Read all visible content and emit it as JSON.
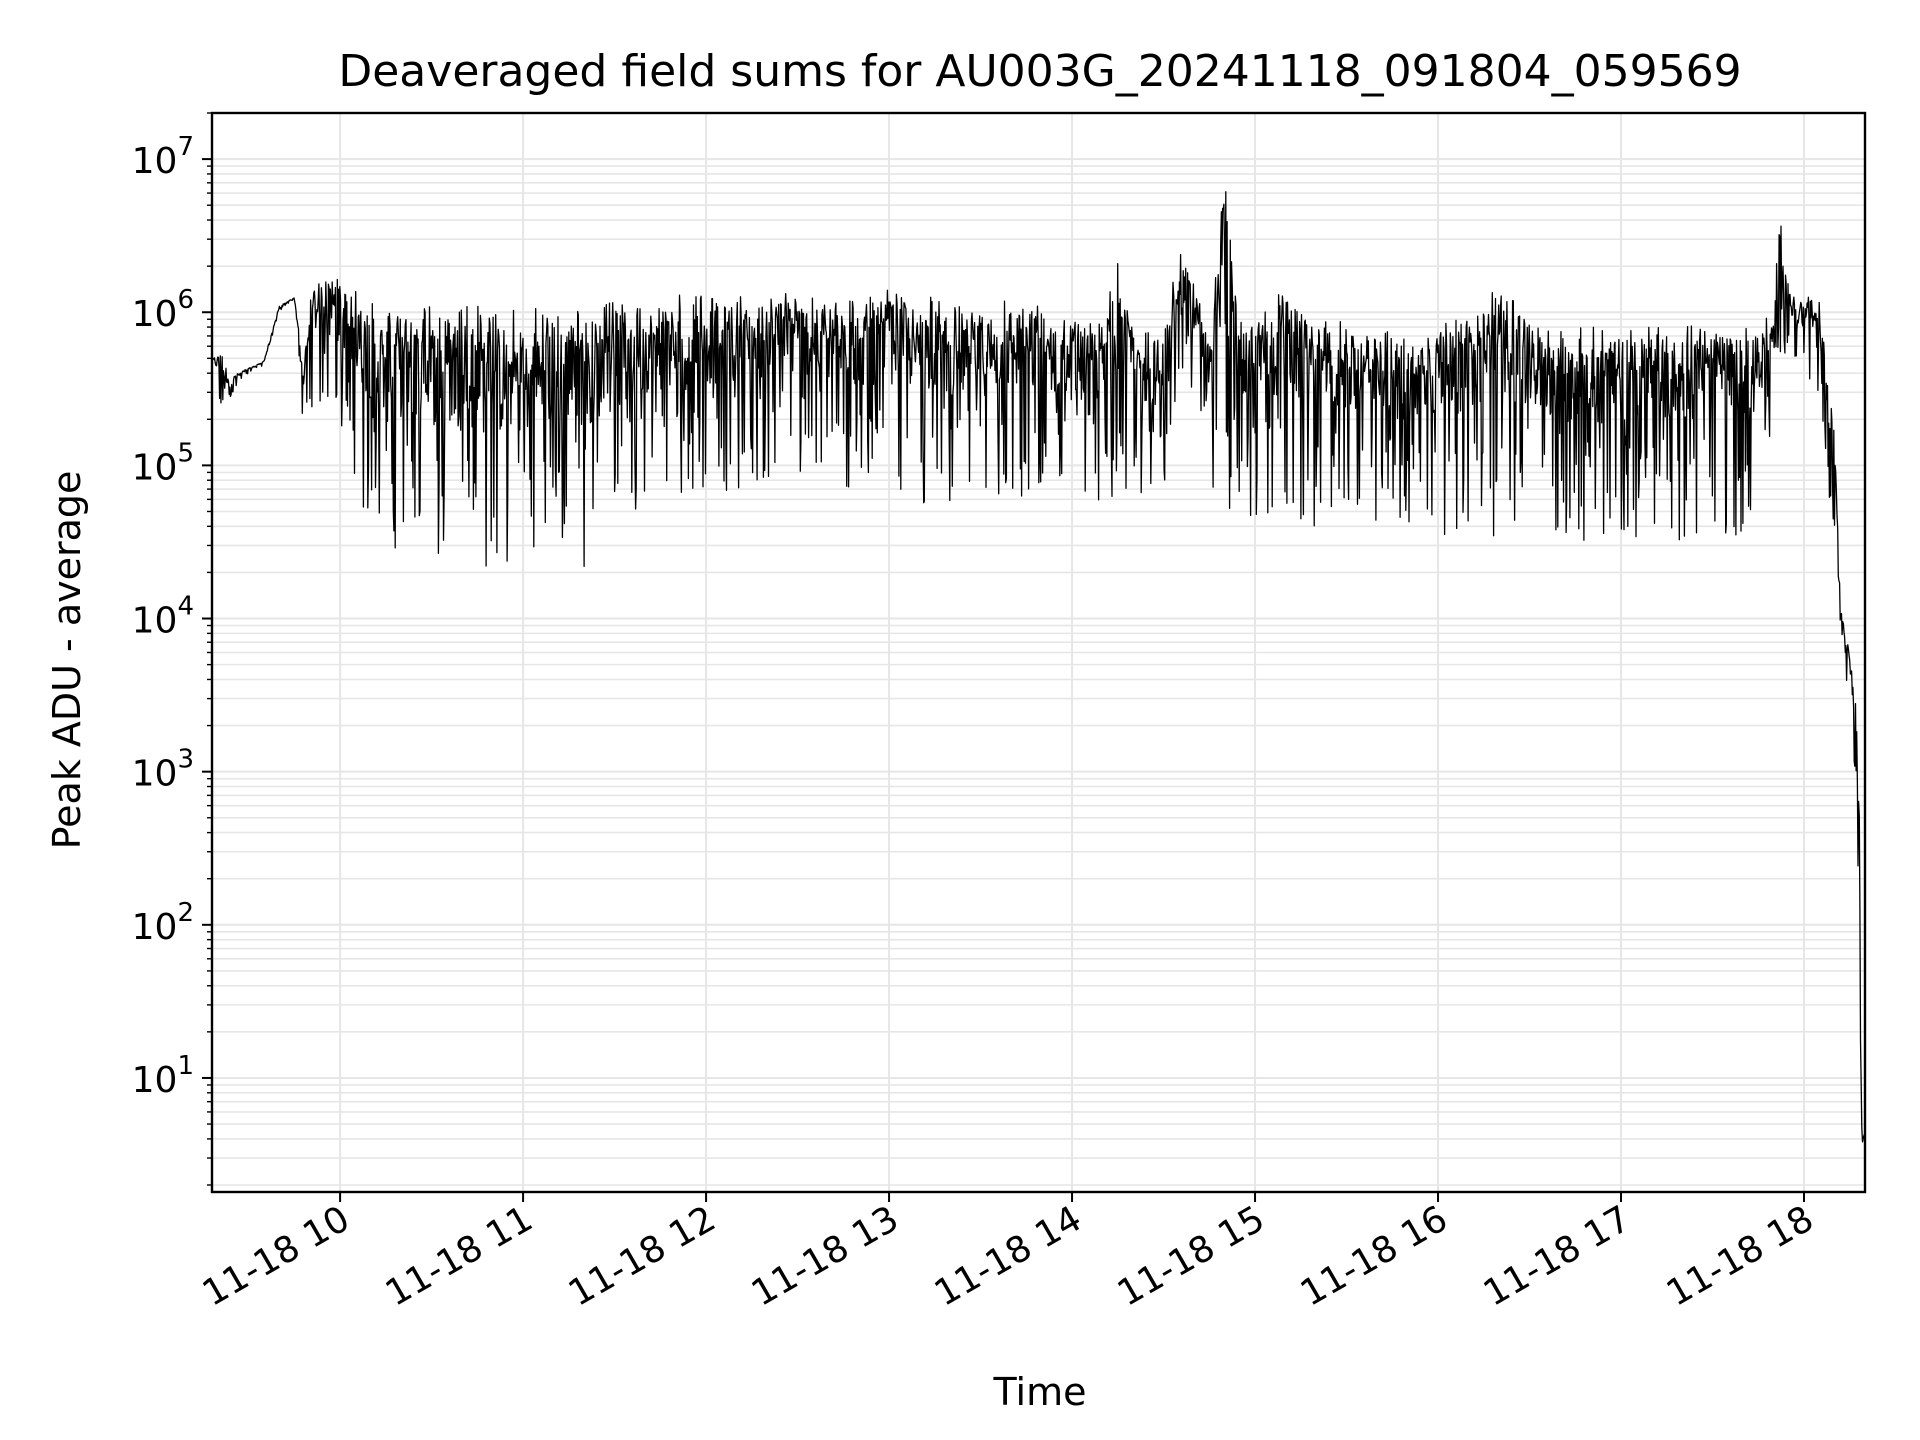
{
  "chart_data": {
    "type": "line",
    "title": "Deaveraged field sums for AU003G_20241118_091804_059569",
    "xlabel": "Time",
    "ylabel": "Peak ADU - average",
    "xscale": "time",
    "yscale": "log",
    "xlim": [
      "2024-11-18T09:18:04",
      "2024-11-18T18:20:00"
    ],
    "ylim": [
      1.8,
      20000000
    ],
    "grid": "major and minor, light gray",
    "line_color": "#000000",
    "x_ticks": [
      "11-18 10",
      "11-18 11",
      "11-18 12",
      "11-18 13",
      "11-18 14",
      "11-18 15",
      "11-18 16",
      "11-18 17",
      "11-18 18"
    ],
    "y_ticks": [
      {
        "value": 10,
        "base": "10",
        "exp": "1"
      },
      {
        "value": 100,
        "base": "10",
        "exp": "2"
      },
      {
        "value": 1000,
        "base": "10",
        "exp": "3"
      },
      {
        "value": 10000,
        "base": "10",
        "exp": "4"
      },
      {
        "value": 100000,
        "base": "10",
        "exp": "5"
      },
      {
        "value": 1000000,
        "base": "10",
        "exp": "6"
      },
      {
        "value": 10000000,
        "base": "10",
        "exp": "7"
      }
    ],
    "series": [
      {
        "x": [
          "09:18",
          "09:21",
          "09:24",
          "09:28",
          "09:31",
          "09:35",
          "09:40",
          "09:45",
          "09:48",
          "09:51",
          "09:54",
          "09:57",
          "10:02",
          "10:06",
          "10:10",
          "10:15",
          "10:20",
          "10:25",
          "10:30",
          "10:35",
          "10:40",
          "10:45",
          "10:50",
          "10:55",
          "11:00",
          "11:05",
          "11:10",
          "11:15",
          "11:20",
          "11:25",
          "11:30",
          "11:35",
          "11:40",
          "11:45",
          "11:50",
          "11:55",
          "12:00",
          "12:10",
          "12:20",
          "12:30",
          "12:40",
          "12:50",
          "13:00",
          "13:10",
          "13:20",
          "13:30",
          "13:40",
          "13:50",
          "14:00",
          "14:10",
          "14:15",
          "14:20",
          "14:30",
          "14:35",
          "14:38",
          "14:40",
          "14:45",
          "14:50",
          "14:55",
          "15:00",
          "15:10",
          "15:20",
          "15:30",
          "15:40",
          "15:50",
          "16:00",
          "16:10",
          "16:20",
          "16:30",
          "16:40",
          "16:50",
          "17:00",
          "17:10",
          "17:20",
          "17:30",
          "17:40",
          "17:45",
          "17:50",
          "17:52",
          "17:55",
          "18:00",
          "18:05",
          "18:07",
          "18:10",
          "18:12",
          "18:14",
          "18:16",
          "18:17",
          "18:18",
          "18:19",
          "18:20"
        ],
        "envelope_high": [
          500000,
          580000,
          380000,
          420000,
          440000,
          480000,
          1100000,
          1250000,
          450000,
          1750000,
          1600000,
          1700000,
          1650000,
          1300000,
          1300000,
          1150000,
          1150000,
          1200000,
          1100000,
          1200000,
          1100000,
          1150000,
          1000000,
          1050000,
          1100000,
          1050000,
          1050000,
          1050000,
          1100000,
          1100000,
          1200000,
          1100000,
          1300000,
          1250000,
          1350000,
          1200000,
          1400000,
          1250000,
          1350000,
          1450000,
          1250000,
          1300000,
          1400000,
          1300000,
          1200000,
          1150000,
          1300000,
          1200000,
          1050000,
          1000000,
          2200000,
          850000,
          750000,
          2900000,
          1800000,
          1600000,
          750000,
          9200000,
          950000,
          950000,
          1500000,
          900000,
          900000,
          800000,
          750000,
          800000,
          1000000,
          1600000,
          900000,
          800000,
          800000,
          800000,
          850000,
          800000,
          850000,
          800000,
          850000,
          1000000,
          5200000,
          1400000,
          1300000,
          1200000,
          600000,
          200000,
          12000,
          7900,
          4200,
          3000,
          1500,
          3.8,
          4.5
        ],
        "envelope_low": [
          500000,
          200000,
          280000,
          350000,
          420000,
          450000,
          1000000,
          1200000,
          160000,
          250000,
          250000,
          200000,
          150000,
          60000,
          40000,
          20000,
          25000,
          22000,
          20000,
          18000,
          17000,
          15000,
          16000,
          16000,
          14000,
          17000,
          22000,
          24000,
          20000,
          25000,
          30000,
          40000,
          50000,
          55000,
          50000,
          60000,
          60000,
          70000,
          80000,
          80000,
          70000,
          60000,
          60000,
          55000,
          50000,
          50000,
          55000,
          50000,
          50000,
          50000,
          60000,
          60000,
          60000,
          80000,
          150000,
          400000,
          60000,
          50000,
          45000,
          45000,
          40000,
          40000,
          45000,
          35000,
          35000,
          35000,
          35000,
          32000,
          38000,
          35000,
          30000,
          32000,
          33000,
          30000,
          35000,
          35000,
          40000,
          200000,
          500000,
          500000,
          400000,
          300000,
          100000,
          30000,
          3000,
          2600,
          2500,
          400,
          3.8,
          3.8,
          3.8
        ]
      }
    ]
  }
}
